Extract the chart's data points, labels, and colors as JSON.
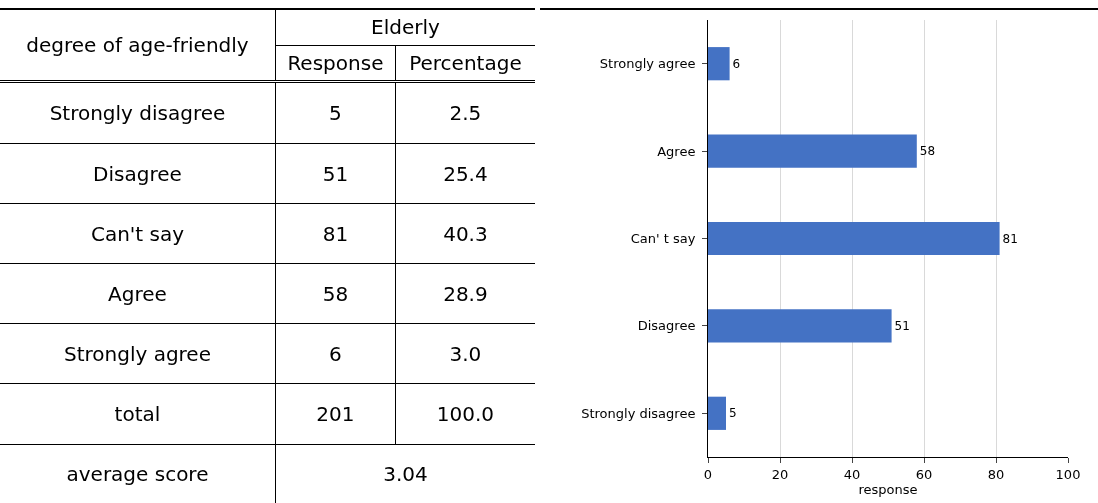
{
  "chart_data": [
    {
      "type": "other",
      "xlabel": "degree of age-friendly",
      "legend_title": "Elderly",
      "categories": [
        "Strongly disagree",
        "Disagree",
        "Can't say",
        "Agree",
        "Strongly agree",
        "total"
      ],
      "series": [
        {
          "name": "Response",
          "values": [
            5,
            51,
            81,
            58,
            6,
            201
          ],
          "value_labels": [
            "5",
            "51",
            "81",
            "58",
            "6",
            "201"
          ]
        },
        {
          "name": "Percentage",
          "values": [
            2.5,
            25.4,
            40.3,
            28.9,
            3.0,
            100.0
          ],
          "value_labels": [
            "2.5",
            "25.4",
            "40.3",
            "28.9",
            "3.0",
            "100.0"
          ]
        }
      ],
      "annotations": [
        "average score",
        "3.04"
      ]
    },
    {
      "type": "bar",
      "orientation": "horizontal",
      "categories": [
        "Strongly agree",
        "Agree",
        "Can' t say",
        "Disagree",
        "Strongly disagree"
      ],
      "values": [
        6,
        58,
        81,
        51,
        5
      ],
      "color": "#4472c4",
      "xlim": [
        0,
        100
      ],
      "xticks": [
        0,
        20,
        40,
        60,
        80,
        100
      ],
      "xlabel": "response",
      "grid": "x",
      "data_labels": true
    }
  ]
}
